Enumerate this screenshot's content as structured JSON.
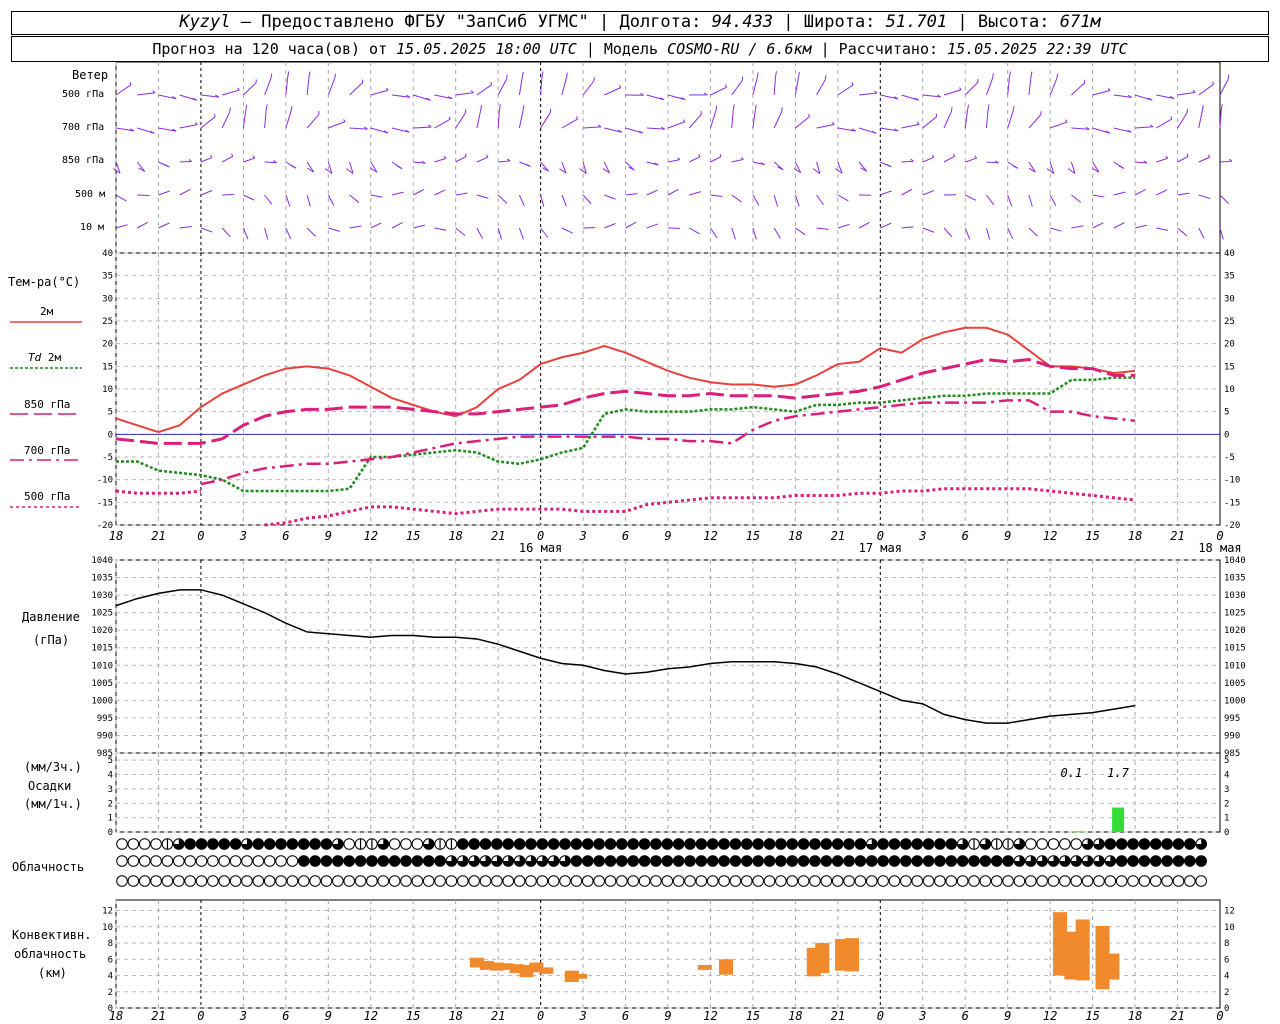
{
  "header": {
    "station": "Kyzyl",
    "provider": "– Предоставлено ФГБУ \"ЗапСиб УГМС\" |",
    "lon_label": "Долгота:",
    "lon": "94.433",
    "lat_label": "| Широта:",
    "lat": "51.701",
    "alt_label": "| Высота:",
    "alt": "671м",
    "forecast_label": "Прогноз на 120 часа(ов) от",
    "forecast_from": "15.05.2025 18:00 UTC",
    "model_label": "| Модель",
    "model": "COSMO-RU / 6.6км",
    "calc_label": "| Рассчитано:",
    "calc_time": "15.05.2025 22:39 UTC"
  },
  "labels": {
    "wind": "Ветер",
    "wind_levels": [
      "500 гПа",
      "700 гПа",
      "850 гПа",
      "500 м",
      "10 м"
    ],
    "temp": "Тем-ра(°C)",
    "t2m": "2м",
    "td": "Td",
    "td2m": "2м",
    "t850": "850 гПа",
    "t700": "700 гПа",
    "t500": "500 гПа",
    "pressure": "Давление",
    "pressure_unit": "(гПа)",
    "precip_u1": "(мм/3ч.)",
    "precip": "Осадки",
    "precip_u2": "(мм/1ч.)",
    "clouds": "Облачность",
    "conv1": "Конвективн.",
    "conv2": "облачность",
    "conv3": "(км)",
    "precip_values": [
      "0.1",
      "1.7"
    ]
  },
  "axis": {
    "hour_ticks": [
      "18",
      "21",
      "0",
      "3",
      "6",
      "9",
      "12",
      "15",
      "18",
      "21",
      "0",
      "3",
      "6",
      "9",
      "12",
      "15",
      "18",
      "21",
      "0",
      "3",
      "6",
      "9",
      "12",
      "15",
      "18",
      "21",
      "0"
    ],
    "days": [
      "16 мая",
      "17 мая",
      "18 мая"
    ]
  },
  "colors": {
    "t2m": "#e8413c",
    "td2m": "#1e8c1e",
    "t850": "#dc1e78",
    "t700": "#dc1e78",
    "t500": "#dc1e78",
    "wind": "#8a2be2",
    "pressure": "#000000",
    "precip": "#33dd33",
    "conv": "#f08a2c",
    "zero_line": "#3030c0"
  },
  "chart_data": [
    {
      "type": "line",
      "name": "temperature",
      "ylabel": "Тем-ра(°C)",
      "ylim": [
        -20,
        40
      ],
      "yticks": [
        -20,
        -15,
        -10,
        -5,
        0,
        5,
        10,
        15,
        20,
        25,
        30,
        35,
        40
      ],
      "x_hours": [
        0,
        1.5,
        3,
        4.5,
        6,
        7.5,
        9,
        10.5,
        12,
        13.5,
        15,
        16.5,
        18,
        19.5,
        21,
        22.5,
        24,
        25.5,
        27,
        28.5,
        30,
        31.5,
        33,
        34.5,
        36,
        37.5,
        39,
        40.5,
        42,
        43.5,
        45,
        46.5,
        48,
        49.5,
        51,
        52.5,
        54,
        55.5,
        57,
        58.5,
        60,
        61.5,
        63,
        64.5,
        66,
        67.5,
        69,
        70.5,
        72
      ],
      "series": [
        {
          "name": "2м",
          "values": [
            3.5,
            2,
            0.5,
            2,
            6,
            9,
            11,
            13,
            14.5,
            15,
            14.5,
            13,
            10.5,
            8,
            6.5,
            5,
            4,
            6,
            10,
            12,
            15.5,
            17,
            18,
            19.5,
            18,
            16,
            14,
            12.5,
            11.5,
            11,
            11,
            10.5,
            11,
            13,
            15.5,
            16,
            19,
            18,
            21,
            22.5,
            23.5,
            23.5,
            22,
            18.5,
            15,
            15,
            14.5,
            13.5,
            14
          ]
        },
        {
          "name": "Td 2м",
          "values": [
            -6,
            -6,
            -8,
            -8.5,
            -9,
            -10,
            -12.5,
            -12.5,
            -12.5,
            -12.5,
            -12.5,
            -12,
            -5,
            -5,
            -4.5,
            -4,
            -3.5,
            -4,
            -6,
            -6.5,
            -5.5,
            -4,
            -3,
            4.5,
            5.5,
            5,
            5,
            5,
            5.5,
            5.5,
            6,
            5.5,
            5,
            6.5,
            6.5,
            7,
            7,
            7.5,
            8,
            8.5,
            8.5,
            9,
            9,
            9,
            9,
            12,
            12,
            12.5,
            12.5
          ]
        },
        {
          "name": "850 гПа",
          "values": [
            -1,
            -1.5,
            -2,
            -2,
            -2,
            -1,
            2,
            4,
            5,
            5.5,
            5.5,
            6,
            6,
            6,
            5.5,
            5,
            4.5,
            4.5,
            5,
            5.5,
            6,
            6.5,
            8,
            9,
            9.5,
            9,
            8.5,
            8.5,
            9,
            8.5,
            8.5,
            8.5,
            8,
            8.5,
            9,
            9.5,
            10.5,
            12,
            13.5,
            14.5,
            15.5,
            16.5,
            16,
            16.5,
            15,
            14.5,
            14.5,
            13,
            13
          ]
        },
        {
          "name": "700 гПа",
          "values": [
            null,
            null,
            null,
            null,
            -11,
            -10,
            -8.5,
            -7.5,
            -7,
            -6.5,
            -6.5,
            -6,
            -5.5,
            -5,
            -4,
            -3,
            -2,
            -1.5,
            -1,
            -0.5,
            -0.5,
            -0.5,
            -0.5,
            -0.5,
            -0.5,
            -1,
            -1,
            -1.5,
            -1.5,
            -2,
            1,
            3,
            4,
            4.5,
            5,
            5.5,
            6,
            6.5,
            7,
            7,
            7,
            7,
            7.5,
            7.5,
            5,
            5,
            4,
            3.5,
            3
          ]
        },
        {
          "name": "500 гПа",
          "values": [
            -12.5,
            -13,
            -13,
            -13,
            -12.5,
            null,
            null,
            -20,
            -19.5,
            -18.5,
            -18,
            -17,
            -16,
            -16,
            -16.5,
            -17,
            -17.5,
            -17,
            -16.5,
            -16.5,
            -16.5,
            -16.5,
            -17,
            -17,
            -17,
            -15.5,
            -15,
            -14.5,
            -14,
            -14,
            -14,
            -14,
            -13.5,
            -13.5,
            -13.5,
            -13,
            -13,
            -12.5,
            -12.5,
            -12,
            -12,
            -12,
            -12,
            -12,
            -12.5,
            -13,
            -13.5,
            -14,
            -14.5
          ]
        }
      ]
    },
    {
      "type": "line",
      "name": "pressure",
      "ylabel": "Давление (гПа)",
      "ylim": [
        985,
        1040
      ],
      "yticks": [
        985,
        990,
        995,
        1000,
        1005,
        1010,
        1015,
        1020,
        1025,
        1030,
        1035,
        1040
      ],
      "x_hours": [
        0,
        1.5,
        3,
        4.5,
        6,
        7.5,
        9,
        10.5,
        12,
        13.5,
        15,
        16.5,
        18,
        19.5,
        21,
        22.5,
        24,
        25.5,
        27,
        28.5,
        30,
        31.5,
        33,
        34.5,
        36,
        37.5,
        39,
        40.5,
        42,
        43.5,
        45,
        46.5,
        48,
        49.5,
        51,
        52.5,
        54,
        55.5,
        57,
        58.5,
        60,
        61.5,
        63,
        64.5,
        66,
        67.5,
        69,
        70.5,
        72
      ],
      "series": [
        {
          "name": "Давление",
          "values": [
            1027,
            1029,
            1030.5,
            1031.5,
            1031.5,
            1030,
            1027.5,
            1025,
            1022,
            1019.5,
            1019,
            1018.5,
            1018,
            1018.5,
            1018.5,
            1018,
            1018,
            1017.5,
            1016,
            1014,
            1012,
            1010.5,
            1010,
            1008.5,
            1007.5,
            1008,
            1009,
            1009.5,
            1010.5,
            1011,
            1011,
            1011,
            1010.5,
            1009.5,
            1007.5,
            1005,
            1002.5,
            1000,
            999,
            996,
            994.5,
            993.5,
            993.5,
            994.5,
            995.5,
            996,
            996.5,
            997.5,
            998.5
          ]
        }
      ]
    },
    {
      "type": "bar",
      "name": "precipitation",
      "ylabel": "Осадки (мм/1ч.)",
      "ylim": [
        0,
        5
      ],
      "yticks": [
        0,
        1,
        2,
        3,
        4,
        5
      ],
      "series": [
        {
          "name": "Осадки",
          "bars": [
            {
              "x_hours": 68,
              "value": 0.05
            },
            {
              "x_hours": 70.8,
              "value": 1.7
            }
          ]
        }
      ],
      "annotations": [
        "0.1",
        "1.7"
      ]
    },
    {
      "type": "bar",
      "name": "convective_clouds",
      "ylabel": "Конвективн. облачность (км)",
      "ylim": [
        0,
        13
      ],
      "yticks": [
        0,
        2,
        4,
        6,
        8,
        10,
        12
      ],
      "series": [
        {
          "name": "Конвективн. облачность",
          "bars": [
            {
              "x_hours": 25.5,
              "base": 5.0,
              "top": 6.2
            },
            {
              "x_hours": 26.2,
              "base": 4.7,
              "top": 5.8
            },
            {
              "x_hours": 26.9,
              "base": 4.6,
              "top": 5.6
            },
            {
              "x_hours": 27.6,
              "base": 4.7,
              "top": 5.5
            },
            {
              "x_hours": 28.3,
              "base": 4.3,
              "top": 5.4
            },
            {
              "x_hours": 29.0,
              "base": 3.8,
              "top": 5.3
            },
            {
              "x_hours": 29.7,
              "base": 4.4,
              "top": 5.6
            },
            {
              "x_hours": 30.4,
              "base": 4.2,
              "top": 5.0
            },
            {
              "x_hours": 32.2,
              "base": 3.2,
              "top": 4.6
            },
            {
              "x_hours": 32.8,
              "base": 3.6,
              "top": 4.2
            },
            {
              "x_hours": 41.6,
              "base": 4.7,
              "top": 5.3
            },
            {
              "x_hours": 43.1,
              "base": 4.1,
              "top": 6.0
            },
            {
              "x_hours": 49.3,
              "base": 3.9,
              "top": 7.4
            },
            {
              "x_hours": 49.9,
              "base": 4.3,
              "top": 8.0
            },
            {
              "x_hours": 51.3,
              "base": 4.6,
              "top": 8.5
            },
            {
              "x_hours": 52.0,
              "base": 4.5,
              "top": 8.6
            },
            {
              "x_hours": 66.7,
              "base": 4.0,
              "top": 11.8
            },
            {
              "x_hours": 67.5,
              "base": 3.5,
              "top": 9.4
            },
            {
              "x_hours": 68.3,
              "base": 3.4,
              "top": 10.9
            },
            {
              "x_hours": 69.7,
              "base": 2.3,
              "top": 10.1
            },
            {
              "x_hours": 70.4,
              "base": 3.5,
              "top": 6.7
            }
          ]
        }
      ]
    }
  ],
  "cloud_rows": {
    "row1": "000012333332333333320112000211333333333333333333333333333333333333233333332121120000022333333332",
    "row2": "000000000000000033333333333332222222222233333333333333333333333333333333333333322222222233333333",
    "row3": "000000000000000000000000000000000000000000000000000000000000000000000000000000000000000000000000"
  }
}
